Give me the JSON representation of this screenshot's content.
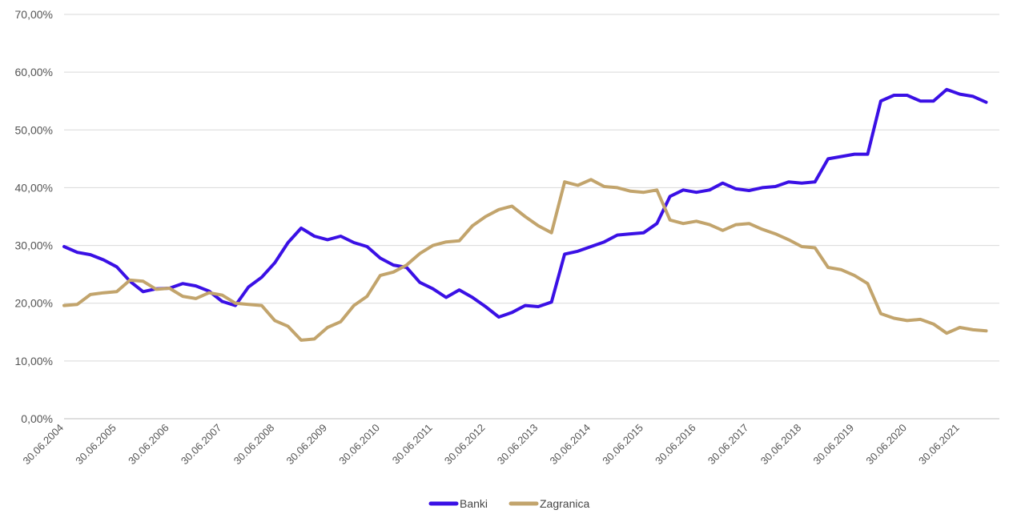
{
  "chart_data": {
    "type": "line",
    "ylim": [
      0,
      70
    ],
    "y_ticks": [
      "0,00%",
      "10,00%",
      "20,00%",
      "30,00%",
      "40,00%",
      "50,00%",
      "60,00%",
      "70,00%"
    ],
    "x_ticks": [
      "30.06.2004",
      "30.06.2005",
      "30.06.2006",
      "30.06.2007",
      "30.06.2008",
      "30.06.2009",
      "30.06.2010",
      "30.06.2011",
      "30.06.2012",
      "30.06.2013",
      "30.06.2014",
      "30.06.2015",
      "30.06.2016",
      "30.06.2017",
      "30.06.2018",
      "30.06.2019",
      "30.06.2020",
      "30.06.2021"
    ],
    "x_start": "2004-06",
    "x_end": "2022-03",
    "grid": true,
    "legend_position": "bottom",
    "series": [
      {
        "name": "Banki",
        "color": "#3a10e5",
        "points": [
          [
            "2004-06",
            29.8
          ],
          [
            "2004-09",
            28.8
          ],
          [
            "2004-12",
            28.4
          ],
          [
            "2005-03",
            27.5
          ],
          [
            "2005-06",
            26.3
          ],
          [
            "2005-09",
            23.8
          ],
          [
            "2005-12",
            22.0
          ],
          [
            "2006-03",
            22.5
          ],
          [
            "2006-06",
            22.6
          ],
          [
            "2006-09",
            23.4
          ],
          [
            "2006-12",
            23.0
          ],
          [
            "2007-03",
            22.1
          ],
          [
            "2007-06",
            20.3
          ],
          [
            "2007-09",
            19.6
          ],
          [
            "2007-12",
            22.8
          ],
          [
            "2008-03",
            24.5
          ],
          [
            "2008-06",
            27.0
          ],
          [
            "2008-09",
            30.5
          ],
          [
            "2008-12",
            33.0
          ],
          [
            "2009-03",
            31.6
          ],
          [
            "2009-06",
            31.0
          ],
          [
            "2009-09",
            31.6
          ],
          [
            "2009-12",
            30.5
          ],
          [
            "2010-03",
            29.8
          ],
          [
            "2010-06",
            27.8
          ],
          [
            "2010-09",
            26.6
          ],
          [
            "2010-12",
            26.2
          ],
          [
            "2011-03",
            23.6
          ],
          [
            "2011-06",
            22.5
          ],
          [
            "2011-09",
            21.0
          ],
          [
            "2011-12",
            22.3
          ],
          [
            "2012-03",
            21.0
          ],
          [
            "2012-06",
            19.4
          ],
          [
            "2012-09",
            17.6
          ],
          [
            "2012-12",
            18.4
          ],
          [
            "2013-03",
            19.6
          ],
          [
            "2013-06",
            19.4
          ],
          [
            "2013-09",
            20.2
          ],
          [
            "2013-12",
            28.5
          ],
          [
            "2014-03",
            29.0
          ],
          [
            "2014-06",
            29.8
          ],
          [
            "2014-09",
            30.6
          ],
          [
            "2014-12",
            31.8
          ],
          [
            "2015-03",
            32.0
          ],
          [
            "2015-06",
            32.2
          ],
          [
            "2015-09",
            33.8
          ],
          [
            "2015-12",
            38.5
          ],
          [
            "2016-03",
            39.6
          ],
          [
            "2016-06",
            39.2
          ],
          [
            "2016-09",
            39.6
          ],
          [
            "2016-12",
            40.8
          ],
          [
            "2017-03",
            39.8
          ],
          [
            "2017-06",
            39.5
          ],
          [
            "2017-09",
            40.0
          ],
          [
            "2017-12",
            40.2
          ],
          [
            "2018-03",
            41.0
          ],
          [
            "2018-06",
            40.8
          ],
          [
            "2018-09",
            41.0
          ],
          [
            "2018-12",
            45.0
          ],
          [
            "2019-03",
            45.4
          ],
          [
            "2019-06",
            45.8
          ],
          [
            "2019-09",
            45.8
          ],
          [
            "2019-12",
            55.0
          ],
          [
            "2020-03",
            56.0
          ],
          [
            "2020-06",
            56.0
          ],
          [
            "2020-09",
            55.0
          ],
          [
            "2020-12",
            55.0
          ],
          [
            "2021-03",
            57.0
          ],
          [
            "2021-06",
            56.2
          ],
          [
            "2021-09",
            55.8
          ],
          [
            "2021-12",
            54.8
          ]
        ]
      },
      {
        "name": "Zagranica",
        "color": "#c2a46c",
        "points": [
          [
            "2004-06",
            19.6
          ],
          [
            "2004-09",
            19.8
          ],
          [
            "2004-12",
            21.5
          ],
          [
            "2005-03",
            21.8
          ],
          [
            "2005-06",
            22.0
          ],
          [
            "2005-09",
            24.0
          ],
          [
            "2005-12",
            23.8
          ],
          [
            "2006-03",
            22.4
          ],
          [
            "2006-06",
            22.6
          ],
          [
            "2006-09",
            21.2
          ],
          [
            "2006-12",
            20.8
          ],
          [
            "2007-03",
            21.8
          ],
          [
            "2007-06",
            21.4
          ],
          [
            "2007-09",
            20.0
          ],
          [
            "2007-12",
            19.8
          ],
          [
            "2008-03",
            19.6
          ],
          [
            "2008-06",
            17.0
          ],
          [
            "2008-09",
            16.0
          ],
          [
            "2008-12",
            13.6
          ],
          [
            "2009-03",
            13.8
          ],
          [
            "2009-06",
            15.8
          ],
          [
            "2009-09",
            16.8
          ],
          [
            "2009-12",
            19.6
          ],
          [
            "2010-03",
            21.2
          ],
          [
            "2010-06",
            24.8
          ],
          [
            "2010-09",
            25.4
          ],
          [
            "2010-12",
            26.6
          ],
          [
            "2011-03",
            28.6
          ],
          [
            "2011-06",
            30.0
          ],
          [
            "2011-09",
            30.6
          ],
          [
            "2011-12",
            30.8
          ],
          [
            "2012-03",
            33.4
          ],
          [
            "2012-06",
            35.0
          ],
          [
            "2012-09",
            36.2
          ],
          [
            "2012-12",
            36.8
          ],
          [
            "2013-03",
            35.0
          ],
          [
            "2013-06",
            33.4
          ],
          [
            "2013-09",
            32.2
          ],
          [
            "2013-12",
            41.0
          ],
          [
            "2014-03",
            40.4
          ],
          [
            "2014-06",
            41.4
          ],
          [
            "2014-09",
            40.2
          ],
          [
            "2014-12",
            40.0
          ],
          [
            "2015-03",
            39.4
          ],
          [
            "2015-06",
            39.2
          ],
          [
            "2015-09",
            39.6
          ],
          [
            "2015-12",
            34.4
          ],
          [
            "2016-03",
            33.8
          ],
          [
            "2016-06",
            34.2
          ],
          [
            "2016-09",
            33.6
          ],
          [
            "2016-12",
            32.6
          ],
          [
            "2017-03",
            33.6
          ],
          [
            "2017-06",
            33.8
          ],
          [
            "2017-09",
            32.8
          ],
          [
            "2017-12",
            32.0
          ],
          [
            "2018-03",
            31.0
          ],
          [
            "2018-06",
            29.8
          ],
          [
            "2018-09",
            29.6
          ],
          [
            "2018-12",
            26.2
          ],
          [
            "2019-03",
            25.8
          ],
          [
            "2019-06",
            24.8
          ],
          [
            "2019-09",
            23.4
          ],
          [
            "2019-12",
            18.2
          ],
          [
            "2020-03",
            17.4
          ],
          [
            "2020-06",
            17.0
          ],
          [
            "2020-09",
            17.2
          ],
          [
            "2020-12",
            16.4
          ],
          [
            "2021-03",
            14.8
          ],
          [
            "2021-06",
            15.8
          ],
          [
            "2021-09",
            15.4
          ],
          [
            "2021-12",
            15.2
          ]
        ]
      }
    ]
  }
}
